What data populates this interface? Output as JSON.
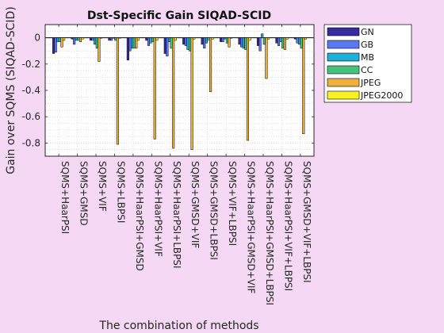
{
  "chart_data": {
    "type": "bar",
    "title": "Dst-Specific Gain SIQAD-SCID",
    "xlabel": "The combination of methods",
    "ylabel": "Gain over SQMS (SIQAD-SCID)",
    "ylim": [
      -0.9,
      0.1
    ],
    "yticks": [
      0,
      -0.2,
      -0.4,
      -0.6,
      -0.8
    ],
    "grid": true,
    "legend_position": "outside-right",
    "categories": [
      "SQMS+HaarPSI",
      "SQMS+GMSD",
      "SQMS+VIF",
      "SQMS+LBPSI",
      "SQMS+HaarPSI+GMSD",
      "SQMS+HaarPSI+VIF",
      "SQMS+HaarPSI+LBPSI",
      "SQMS+GMSD+VIF",
      "SQMS+GMSD+LBPSI",
      "SQMS+VIF+LBPSI",
      "SQMS+HaarPSI+GMSD+VIF",
      "SQMS+HaarPSI+GMSD+LBPSI",
      "SQMS+HaarPSI+VIF+LBPSI",
      "SQMS+GMSD+VIF+LBPSI"
    ],
    "series": [
      {
        "name": "GN",
        "color": "#3a2aa0",
        "values": [
          -0.12,
          -0.01,
          -0.02,
          -0.02,
          -0.17,
          -0.02,
          -0.12,
          -0.05,
          -0.05,
          -0.03,
          -0.05,
          -0.06,
          -0.04,
          -0.01
        ]
      },
      {
        "name": "GB",
        "color": "#5a78f0",
        "values": [
          -0.11,
          -0.05,
          -0.02,
          -0.02,
          -0.1,
          -0.06,
          -0.14,
          -0.06,
          -0.08,
          -0.03,
          -0.07,
          -0.1,
          -0.06,
          -0.04
        ]
      },
      {
        "name": "MB",
        "color": "#1ab0d8",
        "values": [
          -0.03,
          -0.02,
          -0.05,
          0.0,
          -0.08,
          -0.04,
          -0.03,
          -0.09,
          -0.04,
          -0.01,
          -0.08,
          0.03,
          -0.03,
          -0.05
        ]
      },
      {
        "name": "CC",
        "color": "#46c47e",
        "values": [
          -0.03,
          -0.02,
          -0.08,
          -0.02,
          -0.08,
          -0.03,
          -0.08,
          -0.1,
          -0.02,
          -0.04,
          -0.09,
          -0.05,
          -0.08,
          -0.08
        ]
      },
      {
        "name": "JPEG",
        "color": "#f0b040",
        "values": [
          -0.07,
          -0.03,
          -0.18,
          -0.81,
          -0.08,
          -0.77,
          -0.84,
          -0.85,
          -0.41,
          -0.07,
          -0.78,
          -0.31,
          -0.09,
          -0.73
        ]
      },
      {
        "name": "JPEG2000",
        "color": "#f8f020",
        "values": [
          -0.02,
          -0.01,
          0.0,
          0.0,
          -0.02,
          -0.02,
          -0.02,
          -0.01,
          -0.01,
          0.0,
          -0.02,
          -0.01,
          -0.01,
          -0.01
        ]
      }
    ]
  }
}
